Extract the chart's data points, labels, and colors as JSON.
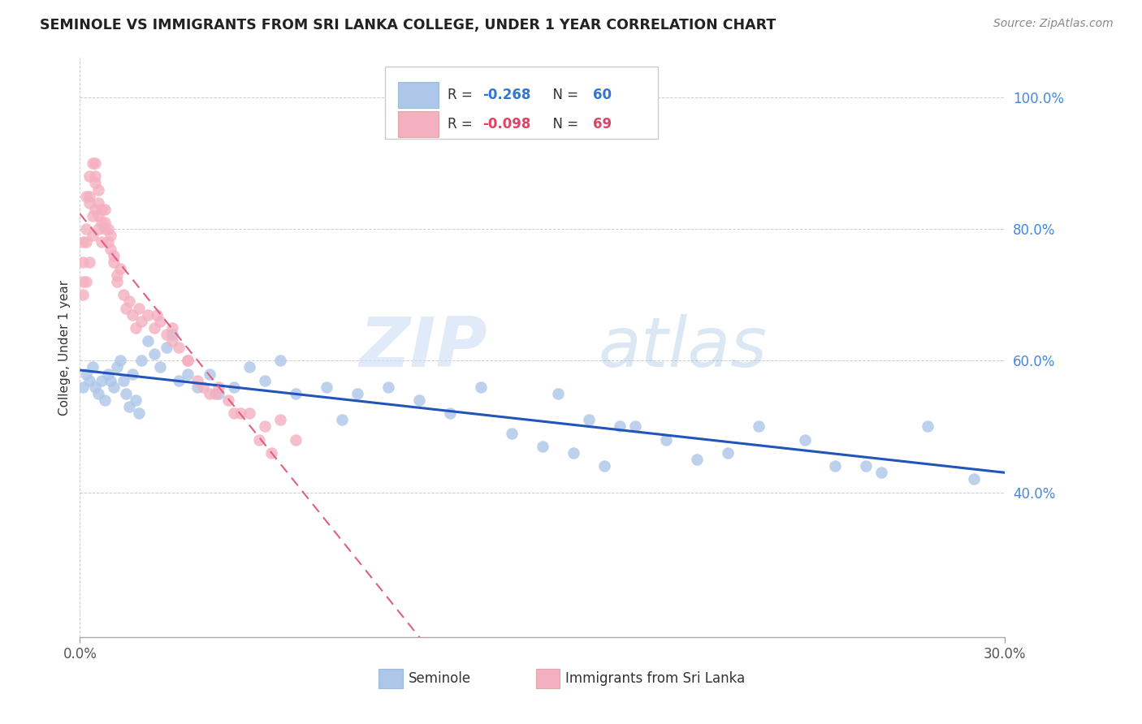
{
  "title": "SEMINOLE VS IMMIGRANTS FROM SRI LANKA COLLEGE, UNDER 1 YEAR CORRELATION CHART",
  "source": "Source: ZipAtlas.com",
  "ylabel": "College, Under 1 year",
  "legend_label1": "Seminole",
  "legend_label2": "Immigrants from Sri Lanka",
  "R1": -0.268,
  "N1": 60,
  "R2": -0.098,
  "N2": 69,
  "color1": "#aec6e8",
  "color2": "#f4afc0",
  "line_color1": "#2255bb",
  "line_color2": "#e06080",
  "xmin": 0.0,
  "xmax": 0.3,
  "ymin": 0.18,
  "ymax": 1.06,
  "ytick_vals": [
    0.4,
    0.6,
    0.8,
    1.0
  ],
  "xtick_left_label": "0.0%",
  "xtick_right_label": "30.0%",
  "watermark_zip": "ZIP",
  "watermark_atlas": "atlas",
  "background_color": "#ffffff",
  "grid_color": "#cccccc",
  "seminole_x": [
    0.001,
    0.002,
    0.003,
    0.004,
    0.005,
    0.006,
    0.007,
    0.008,
    0.009,
    0.01,
    0.011,
    0.012,
    0.013,
    0.014,
    0.015,
    0.016,
    0.017,
    0.018,
    0.019,
    0.02,
    0.022,
    0.024,
    0.026,
    0.028,
    0.03,
    0.032,
    0.035,
    0.038,
    0.042,
    0.045,
    0.05,
    0.055,
    0.06,
    0.065,
    0.07,
    0.08,
    0.085,
    0.09,
    0.1,
    0.11,
    0.12,
    0.13,
    0.14,
    0.15,
    0.155,
    0.16,
    0.165,
    0.17,
    0.175,
    0.18,
    0.19,
    0.2,
    0.21,
    0.22,
    0.235,
    0.245,
    0.255,
    0.26,
    0.275,
    0.29
  ],
  "seminole_y": [
    0.56,
    0.58,
    0.57,
    0.59,
    0.56,
    0.55,
    0.57,
    0.54,
    0.58,
    0.57,
    0.56,
    0.59,
    0.6,
    0.57,
    0.55,
    0.53,
    0.58,
    0.54,
    0.52,
    0.6,
    0.63,
    0.61,
    0.59,
    0.62,
    0.64,
    0.57,
    0.58,
    0.56,
    0.58,
    0.55,
    0.56,
    0.59,
    0.57,
    0.6,
    0.55,
    0.56,
    0.51,
    0.55,
    0.56,
    0.54,
    0.52,
    0.56,
    0.49,
    0.47,
    0.55,
    0.46,
    0.51,
    0.44,
    0.5,
    0.5,
    0.48,
    0.45,
    0.46,
    0.5,
    0.48,
    0.44,
    0.44,
    0.43,
    0.5,
    0.42
  ],
  "srilanka_x": [
    0.001,
    0.001,
    0.001,
    0.001,
    0.002,
    0.002,
    0.002,
    0.002,
    0.003,
    0.003,
    0.003,
    0.003,
    0.004,
    0.004,
    0.004,
    0.005,
    0.005,
    0.005,
    0.005,
    0.006,
    0.006,
    0.006,
    0.006,
    0.007,
    0.007,
    0.007,
    0.008,
    0.008,
    0.008,
    0.009,
    0.009,
    0.01,
    0.01,
    0.011,
    0.011,
    0.012,
    0.012,
    0.013,
    0.014,
    0.015,
    0.016,
    0.017,
    0.018,
    0.019,
    0.02,
    0.022,
    0.024,
    0.026,
    0.028,
    0.03,
    0.032,
    0.035,
    0.038,
    0.042,
    0.045,
    0.05,
    0.055,
    0.06,
    0.065,
    0.07,
    0.04,
    0.048,
    0.052,
    0.058,
    0.062,
    0.025,
    0.03,
    0.035,
    0.044
  ],
  "srilanka_y": [
    0.72,
    0.75,
    0.7,
    0.78,
    0.8,
    0.78,
    0.85,
    0.72,
    0.85,
    0.84,
    0.75,
    0.88,
    0.82,
    0.79,
    0.9,
    0.83,
    0.87,
    0.9,
    0.88,
    0.86,
    0.84,
    0.82,
    0.8,
    0.83,
    0.81,
    0.78,
    0.8,
    0.83,
    0.81,
    0.8,
    0.78,
    0.79,
    0.77,
    0.75,
    0.76,
    0.73,
    0.72,
    0.74,
    0.7,
    0.68,
    0.69,
    0.67,
    0.65,
    0.68,
    0.66,
    0.67,
    0.65,
    0.66,
    0.64,
    0.65,
    0.62,
    0.6,
    0.57,
    0.55,
    0.56,
    0.52,
    0.52,
    0.5,
    0.51,
    0.48,
    0.56,
    0.54,
    0.52,
    0.48,
    0.46,
    0.67,
    0.63,
    0.6,
    0.55
  ]
}
